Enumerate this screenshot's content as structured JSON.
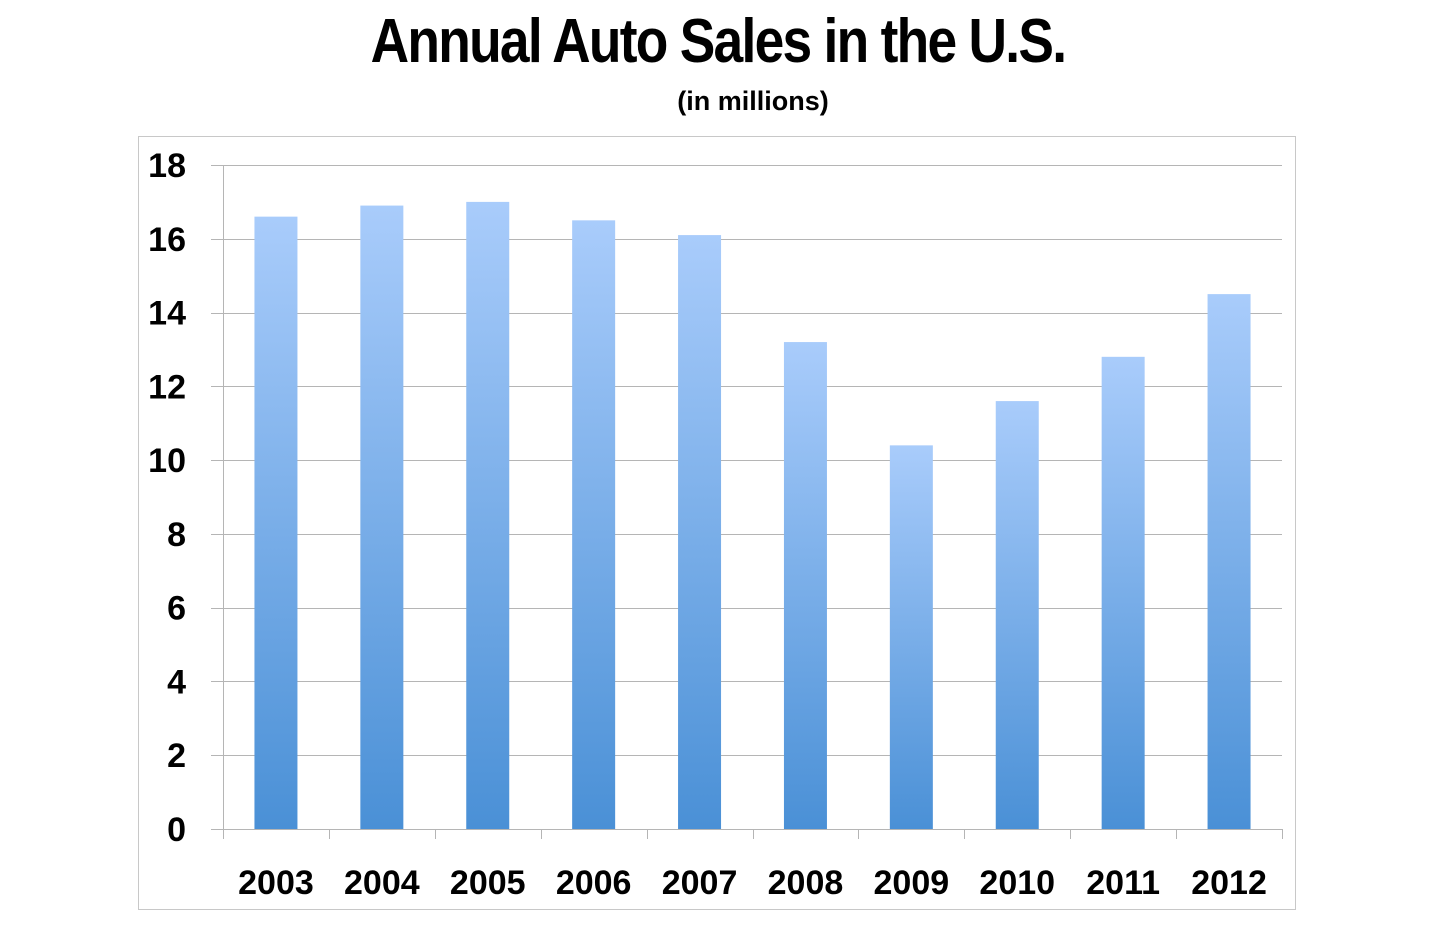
{
  "chart_data": {
    "type": "bar",
    "title": "Annual Auto Sales in the U.S.",
    "subtitle": "(in millions)",
    "xlabel": "",
    "ylabel": "",
    "categories": [
      "2003",
      "2004",
      "2005",
      "2006",
      "2007",
      "2008",
      "2009",
      "2010",
      "2011",
      "2012"
    ],
    "values": [
      16.6,
      16.9,
      17.0,
      16.5,
      16.1,
      13.2,
      10.4,
      11.6,
      12.8,
      14.5
    ],
    "ylim": [
      0,
      18
    ],
    "yticks": [
      "0",
      "2",
      "4",
      "6",
      "8",
      "10",
      "12",
      "14",
      "16",
      "18"
    ],
    "grid": true,
    "legend": "none",
    "colors": {
      "bar_top": "#a9ccfb",
      "bar_bottom": "#4a90d6",
      "grid": "#b5b5b5",
      "frame": "#c8c8c8"
    }
  }
}
